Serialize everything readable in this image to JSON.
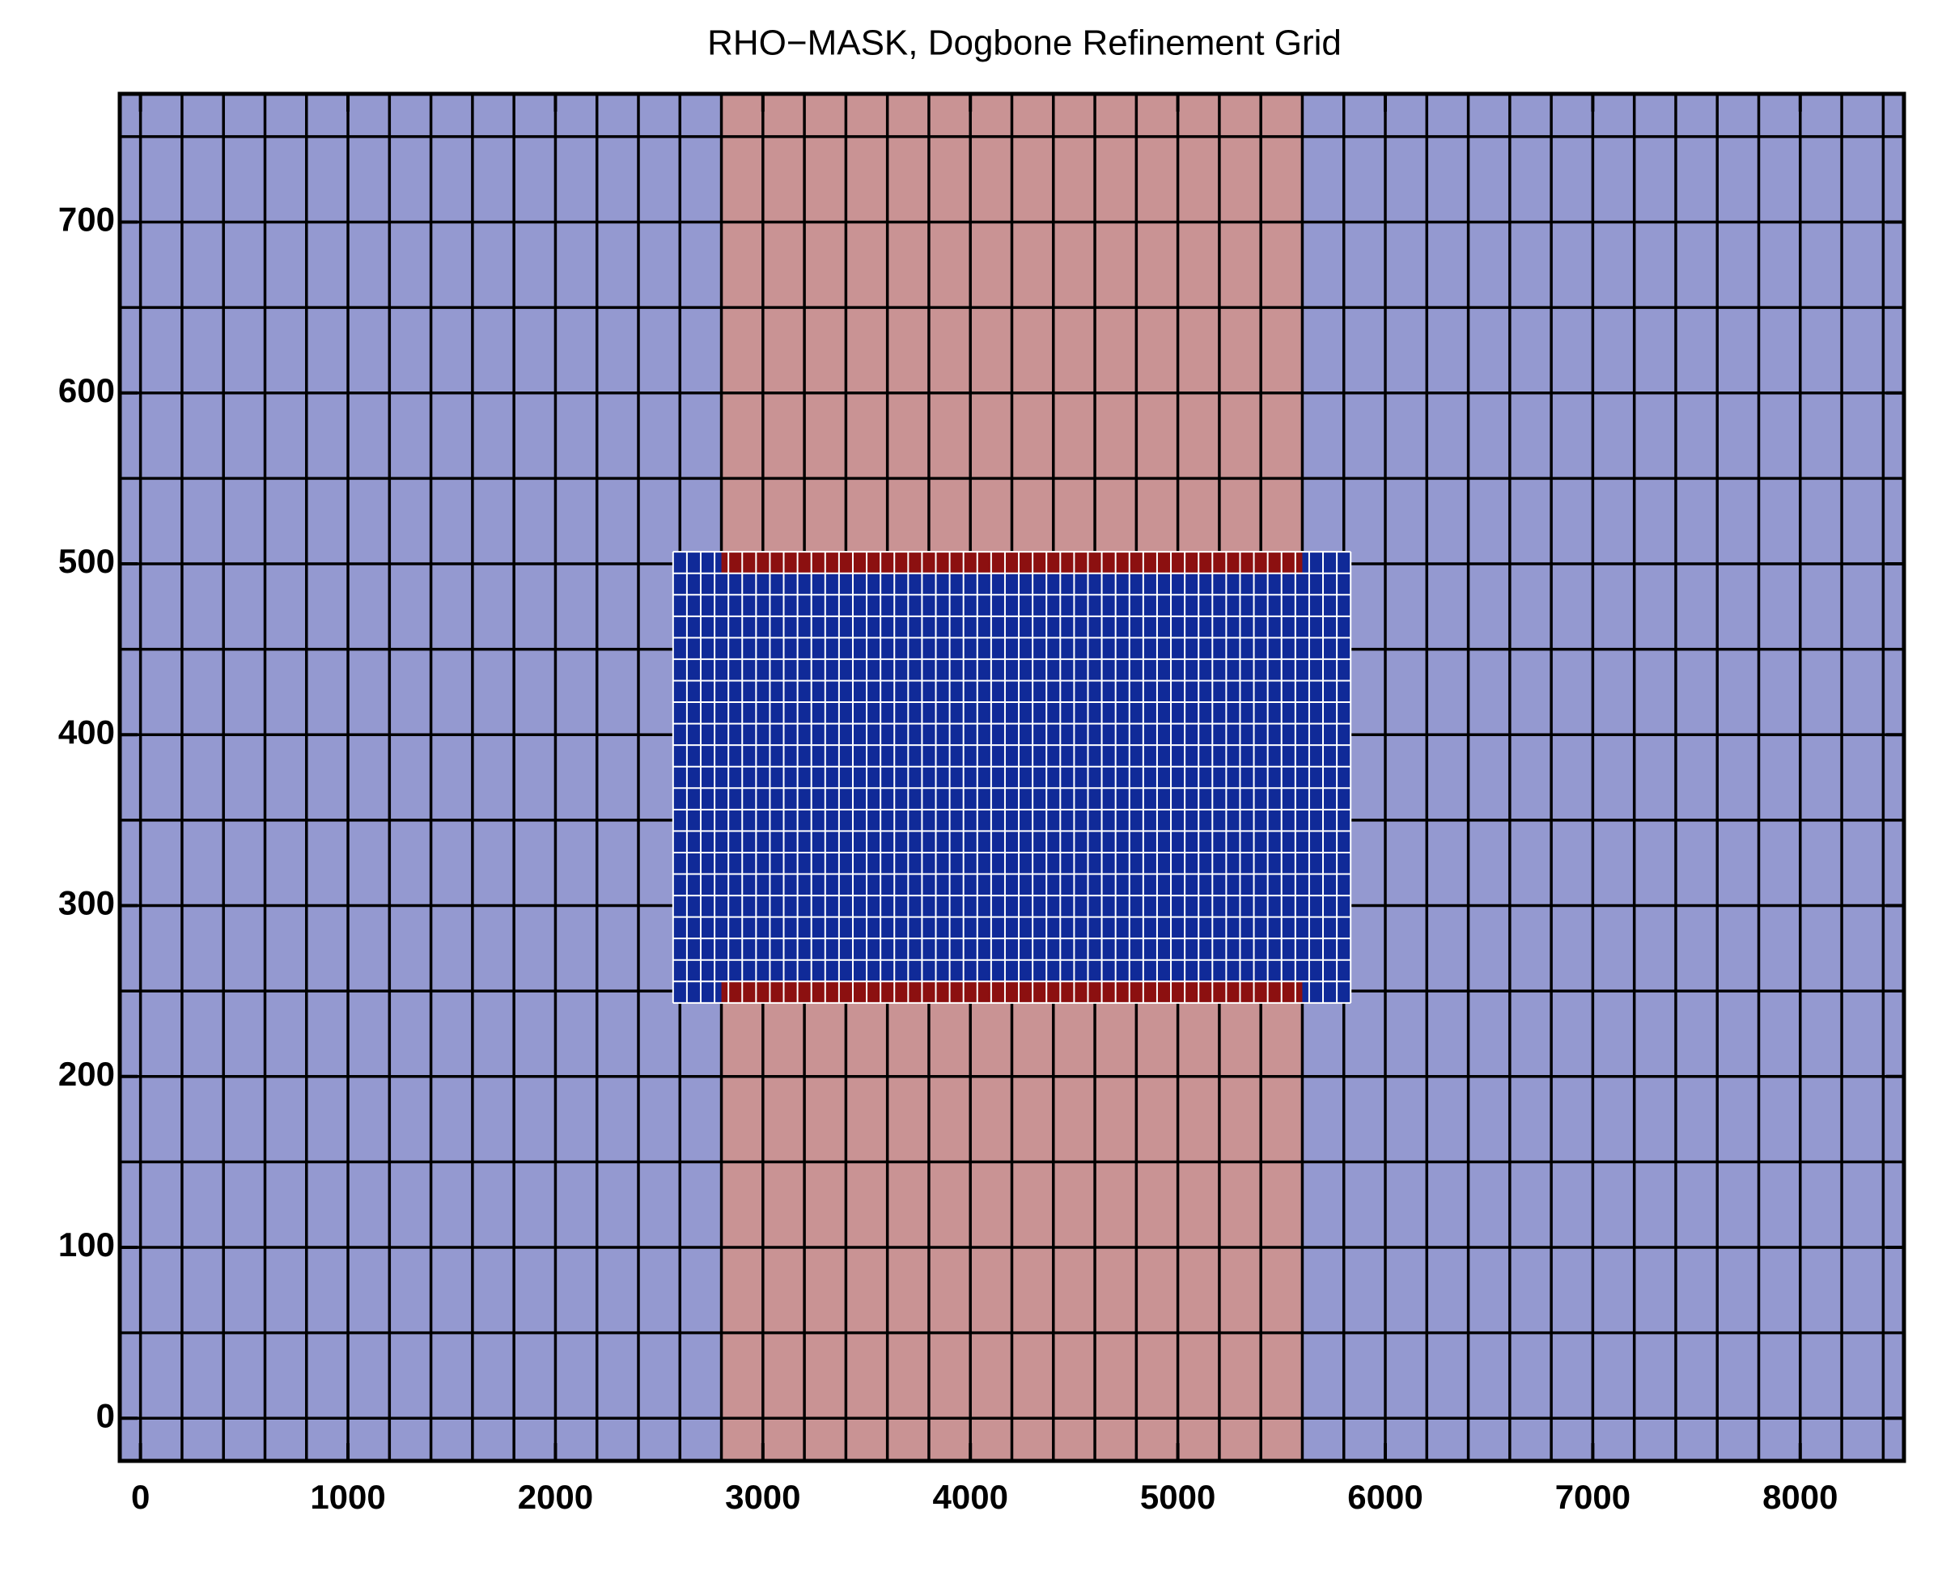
{
  "chart_data": {
    "type": "mesh",
    "title": "RHO−MASK, Dogbone Refinement Grid",
    "xlim": [
      -100,
      8500
    ],
    "ylim": [
      -25,
      775
    ],
    "xticks": [
      0,
      1000,
      2000,
      3000,
      4000,
      5000,
      6000,
      7000,
      8000
    ],
    "yticks": [
      0,
      100,
      200,
      300,
      400,
      500,
      600,
      700
    ],
    "regions": [
      {
        "x": [
          -100,
          8500
        ],
        "y": [
          -25,
          775
        ],
        "color": "#9499d0"
      },
      {
        "x": [
          2800,
          5600
        ],
        "y": [
          -25,
          775
        ],
        "color": "#c99394"
      },
      {
        "x": [
          2567,
          5833
        ],
        "y": [
          243,
          507
        ],
        "color": "#102a98"
      },
      {
        "x": [
          2800,
          5600
        ],
        "y": [
          494,
          507
        ],
        "color": "#8c1010"
      },
      {
        "x": [
          2800,
          5600
        ],
        "y": [
          243,
          256
        ],
        "color": "#8c1010"
      }
    ],
    "coarse_mesh": {
      "dx": 200,
      "dy": 50,
      "color": "#000000"
    },
    "fine_mesh": {
      "x": [
        2567,
        5833
      ],
      "y": [
        243,
        507
      ],
      "nx": 49,
      "ny": 21,
      "color": "#ffffff"
    }
  }
}
